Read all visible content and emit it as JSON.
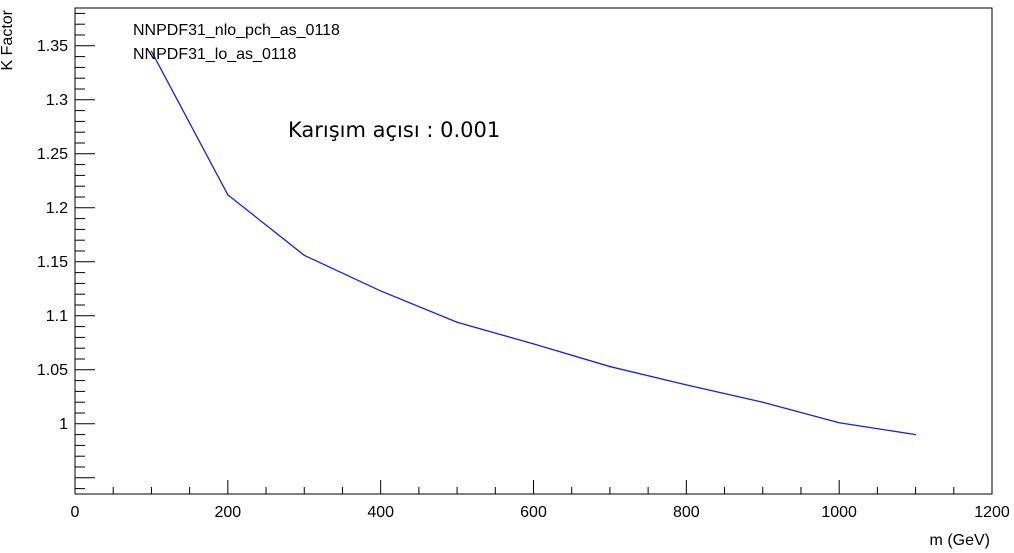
{
  "chart_data": {
    "type": "line",
    "title": "",
    "xlabel": "m (GeV)",
    "ylabel": "K Factor",
    "xlim": [
      0,
      1200
    ],
    "ylim": [
      0.935,
      1.385
    ],
    "x_ticks": [
      0,
      200,
      400,
      600,
      800,
      1000,
      1200
    ],
    "y_ticks": [
      1,
      1.05,
      1.1,
      1.15,
      1.2,
      1.25,
      1.3,
      1.35
    ],
    "legend": [
      "NNPDF31_nlo_pch_as_0118",
      "NNPDF31_lo_as_0118"
    ],
    "annotation": "Karışım açısı : 0.001",
    "grid": false,
    "series": [
      {
        "color": "#1f1fd6",
        "x": [
          100,
          200,
          300,
          400,
          500,
          600,
          700,
          800,
          900,
          1000,
          1100
        ],
        "y": [
          1.345,
          1.212,
          1.156,
          1.123,
          1.094,
          1.074,
          1.053,
          1.036,
          1.02,
          1.001,
          0.99
        ]
      }
    ]
  }
}
